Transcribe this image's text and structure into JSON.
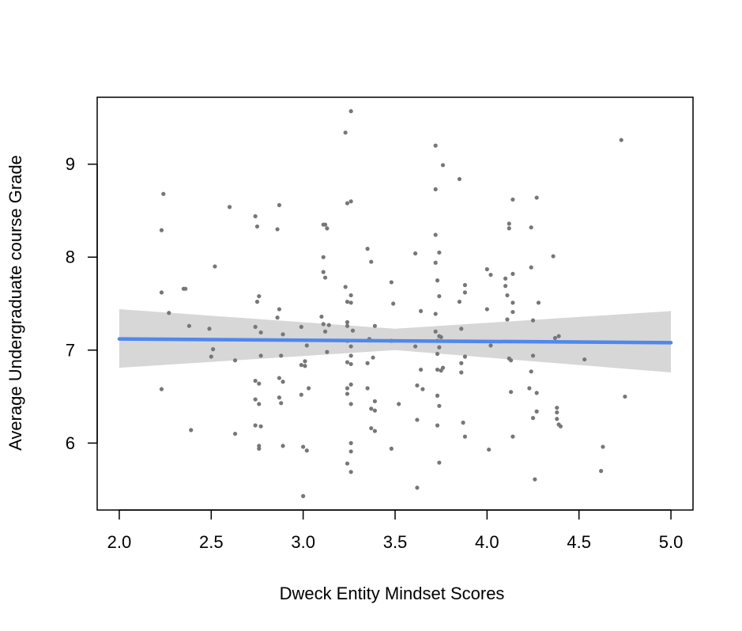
{
  "chart_data": {
    "type": "scatter",
    "title": "",
    "xlabel": "Dweck Entity Mindset Scores",
    "ylabel": "Average Undergraduate course Grade",
    "xlim": [
      1.88,
      5.12
    ],
    "ylim": [
      5.28,
      9.72
    ],
    "x_ticks": [
      "2.0",
      "2.5",
      "3.0",
      "3.5",
      "4.0",
      "4.5",
      "5.0"
    ],
    "y_ticks": [
      "6",
      "7",
      "8",
      "9"
    ],
    "point_color": "#777777",
    "fit_line_color": "#4f87ee",
    "confidence_band_color": "#d7d7d7",
    "grid": false,
    "fit_line": {
      "x": [
        2.0,
        5.0
      ],
      "y": [
        7.12,
        7.08
      ]
    },
    "confidence_band": {
      "x": [
        2.0,
        3.5,
        5.0
      ],
      "lower": [
        6.81,
        7.0,
        6.76
      ],
      "upper": [
        7.44,
        7.23,
        7.42
      ]
    },
    "points": [
      [
        2.23,
        8.29
      ],
      [
        2.24,
        8.68
      ],
      [
        2.23,
        7.62
      ],
      [
        2.27,
        7.4
      ],
      [
        2.23,
        6.58
      ],
      [
        2.35,
        7.66
      ],
      [
        2.36,
        7.66
      ],
      [
        2.38,
        7.26
      ],
      [
        2.39,
        6.14
      ],
      [
        2.49,
        7.23
      ],
      [
        2.51,
        7.01
      ],
      [
        2.5,
        6.93
      ],
      [
        2.52,
        7.9
      ],
      [
        2.6,
        8.54
      ],
      [
        2.63,
        6.1
      ],
      [
        2.63,
        6.89
      ],
      [
        2.74,
        8.44
      ],
      [
        2.75,
        8.33
      ],
      [
        2.74,
        7.25
      ],
      [
        2.74,
        6.67
      ],
      [
        2.74,
        6.47
      ],
      [
        2.74,
        6.19
      ],
      [
        2.76,
        7.58
      ],
      [
        2.75,
        7.52
      ],
      [
        2.77,
        7.19
      ],
      [
        2.77,
        6.94
      ],
      [
        2.76,
        6.64
      ],
      [
        2.76,
        6.42
      ],
      [
        2.77,
        6.18
      ],
      [
        2.76,
        5.97
      ],
      [
        2.76,
        5.94
      ],
      [
        2.86,
        8.3
      ],
      [
        2.87,
        8.56
      ],
      [
        2.87,
        7.44
      ],
      [
        2.86,
        7.35
      ],
      [
        2.89,
        7.17
      ],
      [
        2.88,
        6.94
      ],
      [
        2.87,
        6.7
      ],
      [
        2.89,
        6.66
      ],
      [
        2.87,
        6.49
      ],
      [
        2.88,
        6.43
      ],
      [
        2.89,
        5.97
      ],
      [
        2.99,
        7.25
      ],
      [
        2.99,
        6.84
      ],
      [
        2.99,
        6.52
      ],
      [
        3.0,
        5.96
      ],
      [
        3.0,
        5.43
      ],
      [
        3.01,
        6.88
      ],
      [
        3.01,
        6.83
      ],
      [
        3.02,
        5.92
      ],
      [
        3.03,
        6.59
      ],
      [
        3.02,
        7.05
      ],
      [
        3.11,
        8.35
      ],
      [
        3.12,
        8.35
      ],
      [
        3.11,
        8.0
      ],
      [
        3.11,
        7.84
      ],
      [
        3.12,
        7.78
      ],
      [
        3.13,
        8.31
      ],
      [
        3.1,
        7.36
      ],
      [
        3.11,
        7.28
      ],
      [
        3.12,
        7.2
      ],
      [
        3.14,
        7.27
      ],
      [
        3.13,
        6.98
      ],
      [
        3.23,
        9.34
      ],
      [
        3.24,
        8.58
      ],
      [
        3.23,
        7.68
      ],
      [
        3.24,
        7.52
      ],
      [
        3.24,
        7.3
      ],
      [
        3.24,
        7.26
      ],
      [
        3.24,
        7.1
      ],
      [
        3.24,
        6.87
      ],
      [
        3.24,
        6.59
      ],
      [
        3.24,
        6.53
      ],
      [
        3.24,
        5.78
      ],
      [
        3.26,
        9.57
      ],
      [
        3.26,
        8.6
      ],
      [
        3.26,
        7.59
      ],
      [
        3.26,
        7.51
      ],
      [
        3.27,
        7.21
      ],
      [
        3.26,
        7.04
      ],
      [
        3.26,
        6.94
      ],
      [
        3.26,
        6.85
      ],
      [
        3.26,
        6.63
      ],
      [
        3.26,
        6.42
      ],
      [
        3.26,
        6.0
      ],
      [
        3.26,
        5.91
      ],
      [
        3.26,
        5.69
      ],
      [
        3.35,
        8.09
      ],
      [
        3.37,
        7.95
      ],
      [
        3.36,
        7.12
      ],
      [
        3.35,
        6.86
      ],
      [
        3.37,
        6.37
      ],
      [
        3.37,
        6.16
      ],
      [
        3.35,
        6.59
      ],
      [
        3.38,
        6.92
      ],
      [
        3.39,
        6.45
      ],
      [
        3.39,
        6.35
      ],
      [
        3.39,
        6.13
      ],
      [
        3.39,
        7.26
      ],
      [
        3.48,
        7.73
      ],
      [
        3.49,
        7.5
      ],
      [
        3.48,
        7.1
      ],
      [
        3.48,
        5.94
      ],
      [
        3.52,
        6.42
      ],
      [
        3.61,
        8.04
      ],
      [
        3.61,
        7.04
      ],
      [
        3.62,
        6.62
      ],
      [
        3.62,
        6.25
      ],
      [
        3.62,
        5.52
      ],
      [
        3.64,
        7.42
      ],
      [
        3.64,
        6.79
      ],
      [
        3.65,
        6.58
      ],
      [
        3.72,
        9.2
      ],
      [
        3.72,
        8.73
      ],
      [
        3.72,
        8.24
      ],
      [
        3.72,
        7.94
      ],
      [
        3.73,
        7.75
      ],
      [
        3.72,
        7.39
      ],
      [
        3.72,
        7.2
      ],
      [
        3.73,
        7.1
      ],
      [
        3.73,
        6.96
      ],
      [
        3.73,
        6.79
      ],
      [
        3.73,
        6.51
      ],
      [
        3.73,
        6.19
      ],
      [
        3.74,
        8.05
      ],
      [
        3.74,
        7.58
      ],
      [
        3.74,
        7.15
      ],
      [
        3.74,
        7.03
      ],
      [
        3.75,
        6.78
      ],
      [
        3.74,
        6.4
      ],
      [
        3.74,
        5.79
      ],
      [
        3.76,
        8.99
      ],
      [
        3.75,
        7.14
      ],
      [
        3.76,
        6.81
      ],
      [
        3.85,
        8.84
      ],
      [
        3.85,
        7.52
      ],
      [
        3.86,
        7.23
      ],
      [
        3.86,
        6.86
      ],
      [
        3.86,
        6.76
      ],
      [
        3.87,
        6.22
      ],
      [
        3.88,
        7.7
      ],
      [
        3.88,
        7.62
      ],
      [
        3.88,
        6.93
      ],
      [
        3.88,
        6.07
      ],
      [
        4.0,
        7.87
      ],
      [
        4.0,
        7.44
      ],
      [
        4.01,
        5.93
      ],
      [
        4.02,
        7.81
      ],
      [
        4.02,
        7.05
      ],
      [
        4.1,
        7.77
      ],
      [
        4.1,
        7.69
      ],
      [
        4.11,
        7.59
      ],
      [
        4.11,
        7.33
      ],
      [
        4.12,
        6.91
      ],
      [
        4.13,
        6.55
      ],
      [
        4.12,
        8.36
      ],
      [
        4.12,
        8.31
      ],
      [
        4.14,
        8.62
      ],
      [
        4.14,
        7.82
      ],
      [
        4.14,
        7.51
      ],
      [
        4.14,
        7.41
      ],
      [
        4.13,
        6.89
      ],
      [
        4.14,
        6.07
      ],
      [
        4.24,
        8.32
      ],
      [
        4.24,
        7.89
      ],
      [
        4.25,
        7.32
      ],
      [
        4.25,
        6.94
      ],
      [
        4.24,
        6.77
      ],
      [
        4.23,
        6.59
      ],
      [
        4.25,
        6.27
      ],
      [
        4.27,
        8.64
      ],
      [
        4.27,
        6.54
      ],
      [
        4.27,
        6.34
      ],
      [
        4.26,
        5.61
      ],
      [
        4.28,
        7.51
      ],
      [
        4.36,
        8.01
      ],
      [
        4.37,
        7.13
      ],
      [
        4.38,
        6.38
      ],
      [
        4.38,
        6.33
      ],
      [
        4.38,
        6.26
      ],
      [
        4.39,
        7.15
      ],
      [
        4.39,
        6.2
      ],
      [
        4.4,
        6.18
      ],
      [
        4.53,
        6.9
      ],
      [
        4.62,
        5.7
      ],
      [
        4.63,
        5.96
      ],
      [
        4.73,
        9.26
      ],
      [
        4.75,
        6.5
      ]
    ]
  }
}
